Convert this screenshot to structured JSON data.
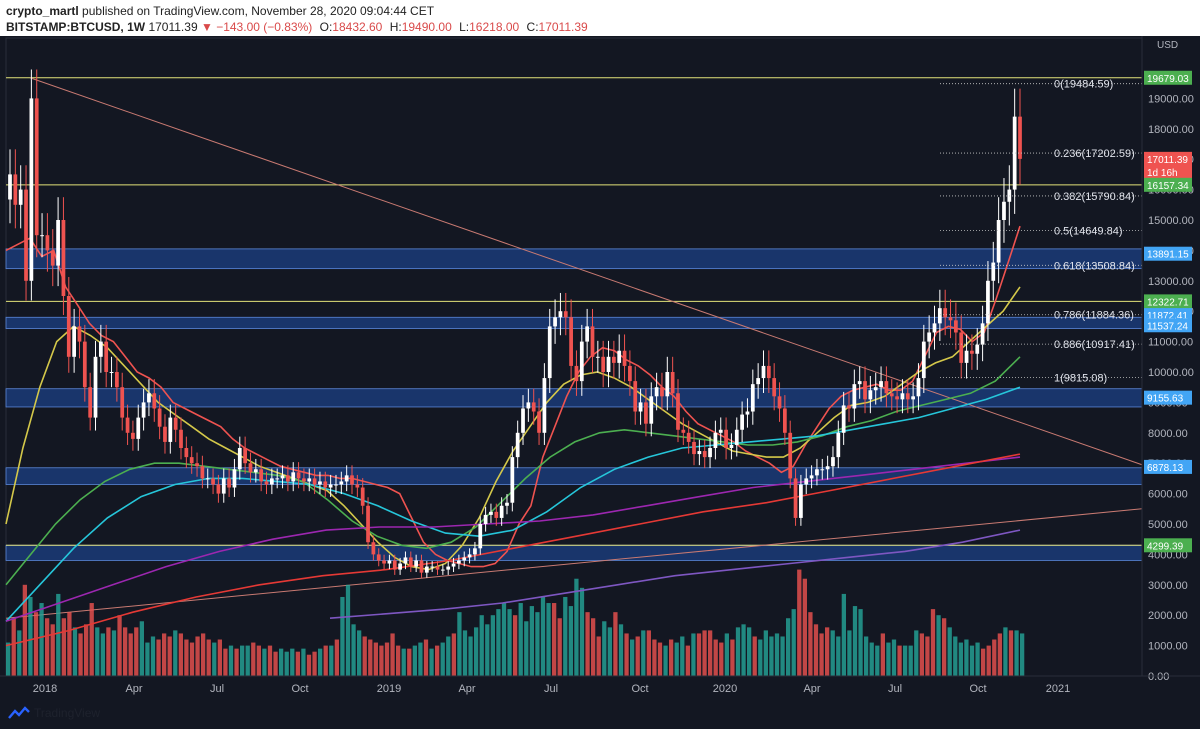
{
  "header": {
    "user": "crypto_martl",
    "published_text": "published on TradingView.com, November 28, 2020 09:04:44 CET",
    "symbol": "BITSTAMP:BTCUSD, 1W",
    "last": "17011.39",
    "change": "−143.00 (−0.83%)",
    "open_label": "O:",
    "open": "18432.60",
    "high_label": "H:",
    "high": "19490.00",
    "low_label": "L:",
    "low": "16218.00",
    "close_label": "C:",
    "close": "17011.39"
  },
  "footer": {
    "brand": "TradingView"
  },
  "colors": {
    "background": "#131722",
    "up": "#ffffff",
    "down": "#ef5350",
    "volume_up": "#26a69a",
    "volume_down": "#ef5350",
    "zone": "#1f4fa8",
    "fib_line": "#c8c8c8",
    "horizontal_yellow": "#e3e37a",
    "axis_text": "#b2b5be"
  },
  "chart_data": {
    "type": "candlestick",
    "title": "BITSTAMP:BTCUSD, 1W",
    "currency_label": "USD",
    "ylim": [
      0,
      20000
    ],
    "yticks": [
      "19000.00",
      "18000.00",
      "17000.00",
      "16000.00",
      "15000.00",
      "14000.00",
      "13000.00",
      "12000.00",
      "11000.00",
      "10000.00",
      "9000.00",
      "8000.00",
      "7000.00",
      "6000.00",
      "5000.00",
      "4000.00",
      "3000.00",
      "2000.00",
      "1000.00",
      "0.00"
    ],
    "xticks": [
      "2018",
      "Apr",
      "Jul",
      "Oct",
      "2019",
      "Apr",
      "Jul",
      "Oct",
      "2020",
      "Apr",
      "Jul",
      "Oct",
      "2021"
    ],
    "price_markers": [
      {
        "label": "19679.03",
        "value": 19679.03,
        "color": "#4caf50"
      },
      {
        "label": "17011.39",
        "value": 17011.39,
        "color": "#ef5350"
      },
      {
        "label": "1d 16h",
        "value": 16580,
        "color": "#ef5350"
      },
      {
        "label": "16157.34",
        "value": 16157.34,
        "color": "#4caf50"
      },
      {
        "label": "13891.15",
        "value": 13891.15,
        "color": "#42a5f5"
      },
      {
        "label": "12322.71",
        "value": 12322.71,
        "color": "#4caf50"
      },
      {
        "label": "11872.41",
        "value": 11872.41,
        "color": "#42a5f5"
      },
      {
        "label": "11537.24",
        "value": 11537.24,
        "color": "#42a5f5"
      },
      {
        "label": "9155.63",
        "value": 9155.63,
        "color": "#42a5f5"
      },
      {
        "label": "6878.13",
        "value": 6878.13,
        "color": "#42a5f5"
      },
      {
        "label": "4299.39",
        "value": 4299.39,
        "color": "#4caf50"
      }
    ],
    "fibonacci": [
      {
        "label": "0(19484.59)",
        "value": 19484.59
      },
      {
        "label": "0.236(17202.59)",
        "value": 17202.59
      },
      {
        "label": "0.382(15790.84)",
        "value": 15790.84
      },
      {
        "label": "0.5(14649.84)",
        "value": 14649.84
      },
      {
        "label": "0.618(13508.84)",
        "value": 13508.84
      },
      {
        "label": "0.786(11884.36)",
        "value": 11884.36
      },
      {
        "label": "0.886(10917.41)",
        "value": 10917.41
      },
      {
        "label": "1(9815.08)",
        "value": 9815.08
      }
    ],
    "zones": [
      {
        "from": 13400,
        "to": 14050
      },
      {
        "from": 11430,
        "to": 11800
      },
      {
        "from": 8850,
        "to": 9450
      },
      {
        "from": 6300,
        "to": 6850
      },
      {
        "from": 3800,
        "to": 4300
      }
    ],
    "horizontal_lines": [
      19679.03,
      16157.34,
      12322.71,
      4299.39
    ],
    "close_series": [
      16500,
      15500,
      16000,
      13000,
      19000,
      14500,
      14500,
      14000,
      13500,
      15000,
      12500,
      10500,
      11500,
      11000,
      9500,
      8500,
      10500,
      11000,
      10000,
      10000,
      9500,
      8500,
      8000,
      7800,
      8500,
      9000,
      9300,
      8800,
      8200,
      7700,
      8500,
      8100,
      7500,
      7200,
      7000,
      6900,
      6500,
      6500,
      6300,
      6000,
      6500,
      6200,
      6800,
      7500,
      7000,
      6700,
      6800,
      6400,
      6300,
      6500,
      6500,
      6600,
      6400,
      6700,
      6500,
      6400,
      6500,
      6300,
      6400,
      6200,
      6300,
      6300,
      6400,
      6600,
      6300,
      6200,
      5600,
      4400,
      4000,
      3800,
      3700,
      3800,
      3500,
      3700,
      3900,
      3600,
      3800,
      3400,
      3600,
      3600,
      3500,
      3500,
      3600,
      3700,
      3800,
      3900,
      4000,
      4200,
      5000,
      5300,
      5400,
      5200,
      5600,
      5700,
      7200,
      8000,
      8800,
      9000,
      8700,
      8000,
      9800,
      11500,
      11800,
      12000,
      11800,
      10200,
      9700,
      11000,
      11500,
      10500,
      10500,
      10000,
      10500,
      10300,
      10700,
      10200,
      9700,
      8700,
      9000,
      8300,
      9200,
      9500,
      9200,
      10000,
      9300,
      8100,
      8000,
      7700,
      7300,
      7400,
      7200,
      7500,
      8000,
      8100,
      7500,
      7600,
      8100,
      8600,
      8700,
      9600,
      9800,
      10200,
      9800,
      9200,
      8800,
      8000,
      6500,
      5200,
      6300,
      6500,
      6600,
      6800,
      6800,
      6900,
      7200,
      8000,
      8900,
      8800,
      9600,
      9700,
      9100,
      9400,
      9500,
      9700,
      9300,
      9200,
      9100,
      9300,
      9100,
      9200,
      9800,
      11000,
      11300,
      11600,
      12100,
      11800,
      11700,
      11300,
      10300,
      10700,
      10600,
      10900,
      11600,
      13000,
      13600,
      15000,
      15600,
      16000,
      18400,
      17011
    ],
    "ma_series": [
      {
        "name": "MA 1",
        "color": "#ef5350",
        "values": [
          14000,
          14200,
          14400,
          13800,
          14000,
          12800,
          12200,
          11600,
          11200,
          11000,
          10500,
          10000,
          9800,
          9500,
          9000,
          8800,
          8600,
          8400,
          8200,
          7800,
          7500,
          7300,
          7100,
          6900,
          6800,
          6700,
          6600,
          6600,
          6500,
          6500,
          6400,
          6300,
          6200,
          6000,
          5200,
          4400,
          4000,
          3800,
          3700,
          3600,
          3600,
          3700,
          4100,
          5000,
          5600,
          7200,
          8200,
          9200,
          10000,
          10500,
          10800,
          10700,
          10400,
          10200,
          9900,
          9500,
          9200,
          8700,
          8300,
          8100,
          7900,
          7700,
          7400,
          7200,
          7000,
          6700,
          6900,
          7600,
          8200,
          8800,
          9200,
          9400,
          9500,
          9600,
          9400,
          9400,
          9700,
          10500,
          11300,
          11500,
          11400,
          11000,
          11300,
          12400,
          13600,
          14800
        ]
      },
      {
        "name": "MA 2",
        "color": "#d4c84a",
        "values": [
          5000,
          7500,
          9500,
          11000,
          11500,
          11200,
          10800,
          10200,
          9600,
          9000,
          8600,
          8200,
          7800,
          7500,
          7200,
          6900,
          6700,
          6500,
          6300,
          6100,
          5600,
          5000,
          4400,
          3900,
          3600,
          3500,
          3700,
          4300,
          5200,
          6400,
          7400,
          8200,
          9000,
          9600,
          9900,
          10000,
          9800,
          9500,
          9100,
          8700,
          8300,
          8000,
          7700,
          7400,
          7300,
          7200,
          7200,
          7500,
          8000,
          8500,
          8900,
          9000,
          9200,
          9600,
          10000,
          10300,
          10500,
          11000,
          11500,
          12000,
          12800
        ]
      },
      {
        "name": "MA 3",
        "color": "#4caf50",
        "values": [
          3000,
          4000,
          5000,
          5800,
          6400,
          6800,
          7000,
          7000,
          6900,
          6800,
          6700,
          6600,
          6400,
          5800,
          5100,
          4600,
          4300,
          4200,
          4400,
          4900,
          5700,
          6500,
          7200,
          7700,
          8000,
          8100,
          8000,
          7900,
          7800,
          7700,
          7600,
          7600,
          7700,
          7900,
          8200,
          8400,
          8700,
          8900,
          9100,
          9300,
          9700,
          10500
        ]
      },
      {
        "name": "MA 4",
        "color": "#26c6da",
        "values": [
          1800,
          3000,
          4200,
          5200,
          5900,
          6300,
          6500,
          6500,
          6400,
          6300,
          6000,
          5600,
          5100,
          4700,
          4600,
          4800,
          5400,
          6200,
          6800,
          7200,
          7500,
          7600,
          7700,
          7800,
          7900,
          8100,
          8300,
          8500,
          8800,
          9100,
          9500
        ]
      },
      {
        "name": "MA 5",
        "color": "#9c27b0",
        "values": [
          1800,
          2400,
          3000,
          3600,
          4100,
          4500,
          4800,
          4900,
          4900,
          5000,
          5100,
          5300,
          5600,
          5900,
          6200,
          6400,
          6600,
          6800,
          7000,
          7200
        ]
      },
      {
        "name": "MA 6",
        "color": "#e53935",
        "values": [
          1000,
          1500,
          2100,
          2600,
          3000,
          3300,
          3500,
          3800,
          4200,
          4600,
          5000,
          5400,
          5700,
          6100,
          6500,
          6900,
          7300
        ]
      },
      {
        "name": "MA 7",
        "color": "#7e57c2",
        "values": [
          1900,
          2050,
          2200,
          2400,
          2700,
          3000,
          3300,
          3500,
          3700,
          3900,
          4100,
          4400,
          4800
        ]
      }
    ],
    "volume": [
      1100,
      1900,
      1500,
      3000,
      2600,
      2100,
      2400,
      1900,
      1700,
      2700,
      1900,
      2100,
      1600,
      1400,
      1700,
      2400,
      1600,
      1400,
      1600,
      1500,
      2000,
      1600,
      1400,
      1600,
      1800,
      1100,
      1300,
      1200,
      1400,
      1300,
      1500,
      1400,
      1200,
      1100,
      1300,
      1400,
      1200,
      1100,
      1200,
      900,
      1000,
      900,
      1000,
      1000,
      1100,
      1000,
      900,
      1000,
      800,
      900,
      800,
      900,
      800,
      900,
      700,
      800,
      900,
      1000,
      1000,
      1200,
      2600,
      3000,
      1700,
      1500,
      1300,
      1200,
      1100,
      1000,
      1100,
      1400,
      1000,
      900,
      900,
      1000,
      1100,
      1200,
      900,
      1000,
      1100,
      1300,
      1400,
      2100,
      1500,
      1300,
      1600,
      2000,
      1700,
      2000,
      2200,
      2400,
      2200,
      2000,
      2400,
      1800,
      2300,
      2100,
      2600,
      2400,
      2400,
      1900,
      2600,
      2300,
      3200,
      2900,
      2100,
      1900,
      1300,
      1800,
      1600,
      2100,
      1700,
      1400,
      1200,
      1300,
      1500,
      1500,
      1200,
      1100,
      1000,
      1200,
      1100,
      1300,
      1000,
      1400,
      1400,
      1500,
      1500,
      1200,
      1100,
      1400,
      1200,
      1600,
      1700,
      1600,
      1300,
      1200,
      1500,
      1300,
      1400,
      1300,
      1900,
      2200,
      3500,
      3200,
      2100,
      1700,
      1400,
      1600,
      1500,
      1300,
      2700,
      1500,
      2300,
      2200,
      1300,
      1100,
      1000,
      1400,
      1100,
      1200,
      1000,
      1000,
      1000,
      1500,
      1400,
      1300,
      2200,
      2000,
      1900,
      1600,
      1300,
      1100,
      1200,
      1000,
      1100,
      900,
      1000,
      1200,
      1400,
      1600,
      1500,
      1500,
      1400
    ]
  }
}
